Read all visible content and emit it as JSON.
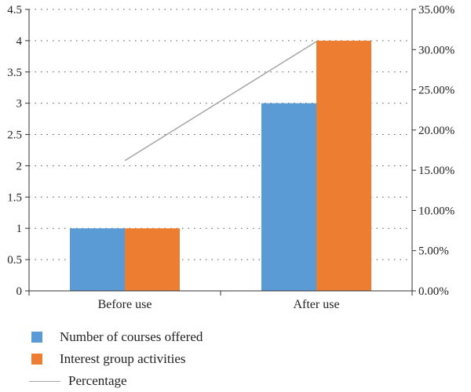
{
  "chart_data": {
    "type": "bar",
    "categories": [
      "Before use",
      "After use"
    ],
    "series": [
      {
        "name": "Number of courses offered",
        "kind": "bar",
        "axis": "left",
        "color": "#5b9bd5",
        "values": [
          1,
          3
        ]
      },
      {
        "name": "Interest group activities",
        "kind": "bar",
        "axis": "left",
        "color": "#ed7d31",
        "values": [
          1,
          4
        ]
      },
      {
        "name": "Percentage",
        "kind": "line",
        "axis": "right",
        "color": "#a5a5a5",
        "values": [
          16.2,
          31
        ]
      }
    ],
    "y_left": {
      "min": 0,
      "max": 4.5,
      "step": 0.5,
      "tick_labels": [
        "0",
        "0.5",
        "1",
        "1.5",
        "2",
        "2.5",
        "3",
        "3.5",
        "4",
        "4.5"
      ]
    },
    "y_right": {
      "min": 0,
      "max": 35,
      "step": 5,
      "tick_labels": [
        "0.00%",
        "5.00%",
        "10.00%",
        "15.00%",
        "20.00%",
        "25.00%",
        "30.00%",
        "35.00%"
      ]
    },
    "grid": "horizontal dotted",
    "legend_position": "bottom-left"
  }
}
